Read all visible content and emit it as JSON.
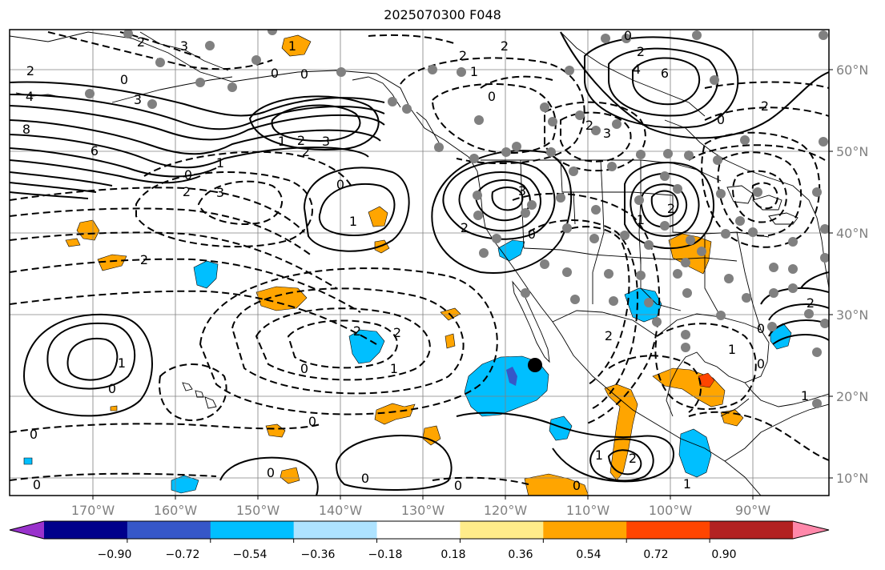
{
  "title": "2025070300 F048",
  "lon_labels": [
    "170°W",
    "160°W",
    "150°W",
    "140°W",
    "130°W",
    "120°W",
    "110°W",
    "100°W",
    "90°W"
  ],
  "lat_labels": [
    "60°N",
    "50°N",
    "40°N",
    "30°N",
    "20°N",
    "10°N"
  ],
  "colorbar": {
    "colors": [
      "#9932cc",
      "#00008b",
      "#3657c8",
      "#00bfff",
      "#aee3ff",
      "#ffffff",
      "#ffec8a",
      "#ffa500",
      "#ff4500",
      "#b22222",
      "#ff88aa"
    ],
    "labels": [
      "−0.90",
      "−0.72",
      "−0.54",
      "−0.36",
      "−0.18",
      "0.18",
      "0.36",
      "0.54",
      "0.72",
      "0.90"
    ]
  },
  "contour_labels": [
    "2",
    "4",
    "8",
    "6",
    "0",
    "3",
    "3",
    "1",
    "2",
    "3",
    "0",
    "0",
    "1",
    "2",
    "3",
    "2",
    "1",
    "0",
    "2",
    "1",
    "0",
    "2",
    "2",
    "2",
    "1",
    "0",
    "0",
    "0",
    "0",
    "0",
    "0",
    "0",
    "1",
    "2",
    "2",
    "0",
    "0",
    "3",
    "1",
    "2",
    "2",
    "3",
    "0",
    "2",
    "2",
    "1",
    "0",
    "0",
    "1",
    "4",
    "6",
    "2",
    "2",
    "0",
    "0",
    "2",
    "1",
    "1",
    "2",
    "1",
    "0"
  ],
  "marker": {
    "lon": -116.0,
    "lat": 23.8
  }
}
